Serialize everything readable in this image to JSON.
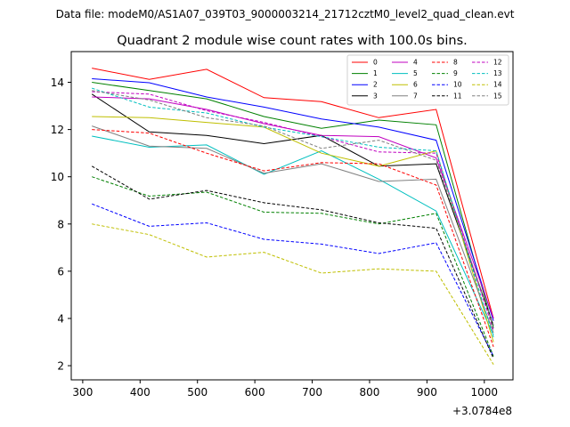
{
  "chart_data": {
    "type": "line",
    "suptitle": "Data file: modeM0/AS1A07_039T03_9000003214_21712cztM0_level2_quad_clean.evt",
    "title": "Quadrant 2 module wise count rates with 100.0s bins.",
    "xlabel": "",
    "ylabel": "",
    "x_offset_label": "+3.0784e8",
    "x": [
      316,
      416,
      516,
      616,
      716,
      816,
      916,
      1016
    ],
    "xlim": [
      280,
      1050
    ],
    "ylim": [
      1.4,
      15.3
    ],
    "x_ticks": [
      300,
      400,
      500,
      600,
      700,
      800,
      900,
      1000
    ],
    "x_tick_labels": [
      "300",
      "400",
      "500",
      "600",
      "700",
      "800",
      "900",
      "1000"
    ],
    "y_ticks": [
      2,
      4,
      6,
      8,
      10,
      12,
      14
    ],
    "y_tick_labels": [
      "2",
      "4",
      "6",
      "8",
      "10",
      "12",
      "14"
    ],
    "grid": false,
    "legend_position": "top-right",
    "legend_columns": 4,
    "series": [
      {
        "name": "0",
        "color": "#ff0000",
        "dash": "solid",
        "values": [
          14.6,
          14.12,
          14.55,
          13.35,
          13.18,
          12.5,
          12.85,
          4.0
        ]
      },
      {
        "name": "1",
        "color": "#008000",
        "dash": "solid",
        "values": [
          14.0,
          13.65,
          13.3,
          12.55,
          12.05,
          12.4,
          12.2,
          3.6
        ]
      },
      {
        "name": "2",
        "color": "#0000ff",
        "dash": "solid",
        "values": [
          14.15,
          13.98,
          13.38,
          12.95,
          12.45,
          12.1,
          11.55,
          3.9
        ]
      },
      {
        "name": "3",
        "color": "#000000",
        "dash": "solid",
        "values": [
          13.5,
          11.9,
          11.75,
          11.4,
          11.75,
          10.45,
          10.55,
          3.7
        ]
      },
      {
        "name": "4",
        "color": "#c000c0",
        "dash": "solid",
        "values": [
          13.38,
          13.3,
          12.85,
          12.25,
          11.75,
          11.7,
          10.8,
          4.0
        ]
      },
      {
        "name": "5",
        "color": "#00bfbf",
        "dash": "solid",
        "values": [
          11.72,
          11.25,
          11.35,
          10.1,
          11.1,
          9.9,
          8.55,
          3.3
        ]
      },
      {
        "name": "6",
        "color": "#bfbf00",
        "dash": "solid",
        "values": [
          12.55,
          12.5,
          12.3,
          12.1,
          11.0,
          10.45,
          11.1,
          3.0
        ]
      },
      {
        "name": "7",
        "color": "#808080",
        "dash": "solid",
        "values": [
          12.15,
          11.3,
          11.2,
          10.15,
          10.55,
          9.8,
          9.9,
          3.4
        ]
      },
      {
        "name": "8",
        "color": "#ff0000",
        "dash": "dashed",
        "values": [
          12.0,
          11.85,
          11.0,
          10.25,
          10.6,
          10.55,
          9.65,
          2.8
        ]
      },
      {
        "name": "9",
        "color": "#008000",
        "dash": "dashed",
        "values": [
          10.0,
          9.18,
          9.35,
          8.5,
          8.45,
          8.0,
          8.45,
          2.4
        ]
      },
      {
        "name": "10",
        "color": "#0000ff",
        "dash": "dashed",
        "values": [
          8.85,
          7.9,
          8.05,
          7.35,
          7.15,
          6.75,
          7.2,
          2.4
        ]
      },
      {
        "name": "11",
        "color": "#000000",
        "dash": "dashed",
        "values": [
          10.45,
          9.05,
          9.42,
          8.9,
          8.6,
          8.05,
          7.82,
          2.3
        ]
      },
      {
        "name": "12",
        "color": "#c000c0",
        "dash": "dashed",
        "values": [
          13.6,
          13.5,
          12.8,
          12.3,
          11.7,
          11.05,
          11.0,
          3.5
        ]
      },
      {
        "name": "13",
        "color": "#00bfbf",
        "dash": "dashed",
        "values": [
          13.75,
          12.95,
          12.7,
          12.1,
          11.7,
          11.25,
          11.1,
          3.2
        ]
      },
      {
        "name": "14",
        "color": "#bfbf00",
        "dash": "dashed",
        "values": [
          8.0,
          7.55,
          6.6,
          6.8,
          5.92,
          6.1,
          6.0,
          2.05
        ]
      },
      {
        "name": "15",
        "color": "#808080",
        "dash": "dashed",
        "values": [
          13.65,
          13.25,
          12.5,
          12.15,
          11.2,
          11.55,
          10.7,
          3.7
        ]
      }
    ]
  }
}
